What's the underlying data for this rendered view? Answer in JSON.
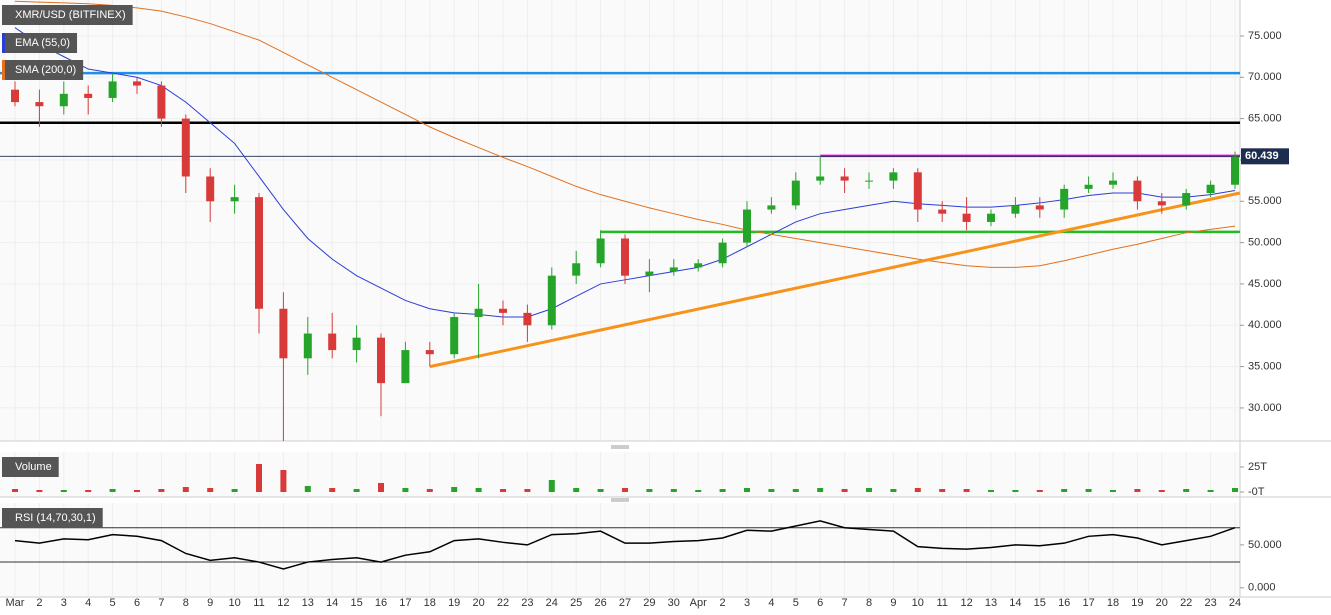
{
  "chart_data": [
    {
      "type": "candlestick",
      "title": "XMR/USD (BITFINEX)",
      "categories": [
        "Mar",
        "2",
        "3",
        "4",
        "5",
        "6",
        "7",
        "8",
        "9",
        "10",
        "11",
        "12",
        "13",
        "14",
        "15",
        "16",
        "17",
        "18",
        "19",
        "20",
        "22",
        "23",
        "24",
        "25",
        "26",
        "27",
        "29",
        "30",
        "Apr",
        "2",
        "3",
        "4",
        "5",
        "6",
        "7",
        "8",
        "9",
        "10",
        "11",
        "12",
        "13",
        "14",
        "15",
        "16",
        "17",
        "18",
        "19",
        "20",
        "22",
        "23",
        "24"
      ],
      "open": [
        68.5,
        67,
        66.5,
        68,
        67.5,
        69.5,
        69,
        65,
        58,
        55,
        55.5,
        42,
        36,
        39,
        37,
        38.5,
        33,
        37,
        36.5,
        41,
        42,
        41.5,
        40,
        46,
        47.5,
        50.5,
        46,
        46.5,
        47,
        47.5,
        50,
        54,
        54.5,
        57.5,
        58,
        57.5,
        57.5,
        58.5,
        54,
        53.5,
        52.5,
        53.5,
        54.5,
        54,
        56.5,
        57,
        57.5,
        55,
        54.5,
        56,
        57
      ],
      "high": [
        69.5,
        68.5,
        69.5,
        69,
        70.5,
        70,
        69.5,
        65.5,
        59,
        57,
        56,
        44,
        41,
        41.5,
        40,
        39,
        38,
        38,
        41.5,
        45,
        43,
        42.5,
        47,
        49,
        51.5,
        51,
        48,
        48,
        48,
        50.5,
        55,
        55.5,
        58.5,
        60.5,
        59,
        58.5,
        59,
        59,
        55,
        55.5,
        54,
        55.5,
        55.5,
        57,
        58,
        58.5,
        58,
        56,
        56.5,
        57.5,
        61
      ],
      "low": [
        66.5,
        64,
        65.5,
        65.5,
        67,
        68,
        64,
        56,
        52.5,
        53.5,
        39,
        26,
        34,
        36,
        35.5,
        29,
        33,
        35,
        36,
        36,
        40,
        38,
        39.5,
        45,
        47,
        45,
        44,
        46,
        46.5,
        47,
        49.5,
        53.5,
        54,
        57,
        56,
        56.5,
        56.5,
        52.5,
        52.5,
        51.5,
        52,
        53,
        53,
        53,
        56,
        56.5,
        54,
        53.5,
        54,
        55.5,
        56.5
      ],
      "close": [
        67,
        66.5,
        68,
        67.5,
        69.5,
        69,
        65,
        58,
        55,
        55.5,
        42,
        36,
        39,
        37,
        38.5,
        33,
        37,
        36.5,
        41,
        42,
        41.5,
        40,
        46,
        47.5,
        50.5,
        46,
        46.5,
        47,
        47.5,
        50,
        54,
        54.5,
        57.5,
        58,
        57.5,
        57.5,
        58.5,
        54,
        53.5,
        52.5,
        53.5,
        54.5,
        54,
        56.5,
        57,
        57.5,
        55,
        54.5,
        56,
        57,
        60.4
      ],
      "up_color": "#26a42a",
      "down_color": "#d83a3a",
      "series": [
        {
          "name": "EMA (55,0)",
          "color": "#2b3dd6",
          "values": [
            76,
            74,
            72.5,
            71,
            70.5,
            70,
            69,
            67,
            64.5,
            62,
            58,
            54,
            50.5,
            48,
            46,
            44.5,
            43,
            42,
            41.5,
            41.3,
            41,
            41,
            42,
            43.5,
            45,
            45.5,
            46,
            46.5,
            47,
            48,
            49.5,
            51,
            52.5,
            53.5,
            54,
            54.5,
            55,
            54.7,
            54.5,
            54.3,
            54.3,
            54.5,
            54.8,
            55.2,
            55.7,
            56,
            56,
            55.5,
            55.5,
            55.8,
            56.3
          ]
        },
        {
          "name": "SMA (200,0)",
          "color": "#e2701f",
          "values": [
            79.2,
            79.1,
            79,
            78.9,
            78.7,
            78.4,
            78,
            77.3,
            76.5,
            75.5,
            74.5,
            73,
            71.5,
            70,
            68.5,
            67,
            65.5,
            64,
            62.7,
            61.5,
            60.3,
            59.2,
            58,
            56.8,
            55.8,
            55,
            54.2,
            53.5,
            52.8,
            52.2,
            51.5,
            51,
            50.5,
            50,
            49.5,
            49,
            48.5,
            48,
            47.6,
            47.2,
            47,
            47,
            47.2,
            47.8,
            48.5,
            49.2,
            49.8,
            50.5,
            51.2,
            51.6,
            52
          ]
        }
      ],
      "ylim": [
        26,
        79.35
      ],
      "yticks": [
        {
          "value": 30,
          "label": "30.000"
        },
        {
          "value": 35,
          "label": "35.000"
        },
        {
          "value": 40,
          "label": "40.000"
        },
        {
          "value": 45,
          "label": "45.000"
        },
        {
          "value": 50,
          "label": "50.000"
        },
        {
          "value": 55,
          "label": "55.000"
        },
        {
          "value": 60,
          "label": "60.000"
        },
        {
          "value": 65,
          "label": "65.000"
        },
        {
          "value": 70,
          "label": "70.000"
        },
        {
          "value": 75,
          "label": "75.000"
        }
      ],
      "last_price": 60.439,
      "levels": [
        {
          "value": 70.5,
          "color": "#1e90e8"
        },
        {
          "value": 64.5,
          "color": "#000000"
        },
        {
          "value": 60.5,
          "color": "#e600e6",
          "start": 33
        },
        {
          "value": 51.3,
          "color": "#22bb22",
          "start": 24
        }
      ],
      "trendlines": [
        {
          "color": "#f7931a",
          "x": [
            17,
            50.2
          ],
          "y": [
            35,
            56
          ]
        }
      ],
      "grid": true
    },
    {
      "type": "bar",
      "title": "Volume",
      "values": [
        3,
        2,
        2,
        2,
        3,
        2,
        3,
        5,
        4,
        3,
        28,
        22,
        6,
        4,
        3,
        9,
        4,
        3,
        5,
        4,
        3,
        3,
        12,
        4,
        3,
        4,
        3,
        3,
        2,
        3,
        4,
        3,
        3,
        4,
        3,
        4,
        3,
        4,
        3,
        3,
        2,
        2,
        2,
        3,
        3,
        2,
        3,
        2,
        3,
        2,
        4
      ],
      "ylim": [
        -5,
        40
      ],
      "yticks": [
        {
          "value": 25,
          "label": "25T"
        },
        {
          "value": 0,
          "label": "-0T"
        }
      ]
    },
    {
      "type": "line",
      "title": "RSI (14,70,30,1)",
      "color": "#000000",
      "values": [
        55,
        52,
        57,
        56,
        62,
        60,
        55,
        40,
        32,
        35,
        30,
        22,
        30,
        33,
        35,
        30,
        38,
        42,
        55,
        57,
        53,
        50,
        62,
        63,
        66,
        52,
        52,
        54,
        55,
        58,
        67,
        66,
        72,
        78,
        70,
        68,
        66,
        48,
        46,
        45,
        47,
        50,
        49,
        52,
        60,
        62,
        58,
        50,
        55,
        60,
        70
      ],
      "ylim": [
        -10.7,
        98.8
      ],
      "yticks": [
        {
          "value": 0,
          "label": "0.000"
        },
        {
          "value": 50,
          "label": "50.000"
        }
      ],
      "levels": [
        70,
        30
      ]
    }
  ]
}
